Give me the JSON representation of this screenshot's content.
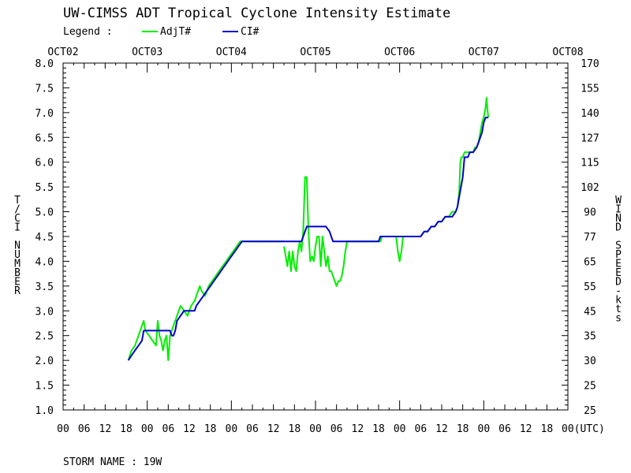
{
  "chart_data": {
    "type": "line",
    "title": "UW-CIMSS ADT Tropical Cyclone Intensity Estimate",
    "legend": {
      "label": "Legend :",
      "placement": "top-left",
      "entries": [
        {
          "name": "AdjT#",
          "color": "#00ee00"
        },
        {
          "name": "CI#",
          "color": "#0000cc"
        }
      ]
    },
    "x_units": "hours since OCT02 00 UTC",
    "xlim": [
      0,
      144
    ],
    "top_date_labels": [
      "OCT02",
      "OCT03",
      "OCT04",
      "OCT05",
      "OCT06",
      "OCT07",
      "OCT08"
    ],
    "bottom_hour_labels": [
      "00",
      "06",
      "12",
      "18",
      "00",
      "06",
      "12",
      "18",
      "00",
      "06",
      "12",
      "18",
      "00",
      "06",
      "12",
      "18",
      "00",
      "06",
      "12",
      "18",
      "00",
      "06",
      "12",
      "18",
      "00(UTC)"
    ],
    "left_axis": {
      "label": "T/CI NUMBER",
      "ylim": [
        1.0,
        8.0
      ],
      "ticks": [
        "1.0",
        "1.5",
        "2.0",
        "2.5",
        "3.0",
        "3.5",
        "4.0",
        "4.5",
        "5.0",
        "5.5",
        "6.0",
        "6.5",
        "7.0",
        "7.5",
        "8.0"
      ]
    },
    "right_axis": {
      "label": "WIND SPEED-kts",
      "ticks": [
        "25",
        "25",
        "30",
        "35",
        "45",
        "55",
        "65",
        "77",
        "90",
        "102",
        "115",
        "127",
        "140",
        "155",
        "170"
      ]
    },
    "storm_label": "STORM NAME : 19W",
    "series": [
      {
        "name": "AdjT#",
        "color": "#00ee00",
        "segments": [
          [
            [
              18.6,
              2.0
            ],
            [
              19.5,
              2.2
            ],
            [
              20.5,
              2.3
            ],
            [
              21.5,
              2.5
            ],
            [
              22.5,
              2.7
            ],
            [
              23.0,
              2.8
            ],
            [
              23.5,
              2.6
            ],
            [
              24.5,
              2.5
            ],
            [
              25.5,
              2.4
            ],
            [
              26.5,
              2.3
            ],
            [
              27.0,
              2.8
            ],
            [
              27.5,
              2.5
            ],
            [
              28.0,
              2.4
            ],
            [
              28.5,
              2.2
            ],
            [
              29.0,
              2.4
            ],
            [
              29.5,
              2.5
            ],
            [
              30.0,
              2.0
            ],
            [
              30.5,
              2.5
            ],
            [
              31.5,
              2.7
            ],
            [
              32.5,
              2.9
            ],
            [
              33.5,
              3.1
            ],
            [
              34.5,
              3.0
            ],
            [
              35.5,
              2.9
            ],
            [
              36.5,
              3.1
            ],
            [
              37.5,
              3.2
            ],
            [
              38.5,
              3.4
            ],
            [
              39.0,
              3.5
            ],
            [
              39.5,
              3.4
            ],
            [
              40.5,
              3.3
            ],
            [
              41.5,
              3.5
            ],
            [
              42.5,
              3.6
            ],
            [
              43.5,
              3.7
            ],
            [
              44.5,
              3.8
            ],
            [
              45.5,
              3.9
            ],
            [
              46.5,
              4.0
            ],
            [
              47.5,
              4.1
            ],
            [
              48.5,
              4.2
            ],
            [
              49.5,
              4.3
            ],
            [
              50.5,
              4.4
            ],
            [
              52.0,
              4.4
            ],
            [
              55.0,
              4.4
            ],
            [
              58.0,
              4.4
            ],
            [
              61.0,
              4.4
            ],
            [
              63.0,
              4.4
            ]
          ],
          [
            [
              63.0,
              4.3
            ],
            [
              63.5,
              4.1
            ],
            [
              64.0,
              3.9
            ],
            [
              64.5,
              4.2
            ],
            [
              65.0,
              3.8
            ],
            [
              65.5,
              4.2
            ],
            [
              66.0,
              3.9
            ],
            [
              66.5,
              3.8
            ],
            [
              67.0,
              4.2
            ],
            [
              67.5,
              4.4
            ],
            [
              68.0,
              4.2
            ],
            [
              68.5,
              4.6
            ],
            [
              69.0,
              5.7
            ],
            [
              69.5,
              5.7
            ],
            [
              70.0,
              4.6
            ],
            [
              70.5,
              4.0
            ],
            [
              71.0,
              4.1
            ],
            [
              71.5,
              4.0
            ],
            [
              72.0,
              4.3
            ],
            [
              72.5,
              4.5
            ],
            [
              73.0,
              4.5
            ],
            [
              73.5,
              3.9
            ],
            [
              74.0,
              4.5
            ],
            [
              74.5,
              4.2
            ],
            [
              75.0,
              3.9
            ],
            [
              75.5,
              4.1
            ],
            [
              76.0,
              3.8
            ],
            [
              76.5,
              3.8
            ],
            [
              77.0,
              3.7
            ],
            [
              77.5,
              3.6
            ],
            [
              78.0,
              3.5
            ],
            [
              78.5,
              3.6
            ],
            [
              79.0,
              3.6
            ],
            [
              79.5,
              3.7
            ],
            [
              80.0,
              3.9
            ],
            [
              80.5,
              4.2
            ],
            [
              81.0,
              4.4
            ]
          ],
          [
            [
              81.0,
              4.4
            ],
            [
              84.0,
              4.4
            ],
            [
              88.0,
              4.4
            ],
            [
              90.5,
              4.4
            ],
            [
              91.0,
              4.5
            ],
            [
              94.0,
              4.5
            ],
            [
              95.0,
              4.5
            ],
            [
              95.5,
              4.2
            ],
            [
              96.0,
              4.0
            ],
            [
              96.5,
              4.2
            ],
            [
              97.0,
              4.5
            ],
            [
              98.0,
              4.5
            ],
            [
              101.0,
              4.5
            ],
            [
              102.0,
              4.5
            ],
            [
              103.0,
              4.6
            ],
            [
              104.0,
              4.6
            ],
            [
              105.0,
              4.7
            ],
            [
              106.0,
              4.7
            ],
            [
              107.0,
              4.8
            ],
            [
              108.0,
              4.8
            ],
            [
              109.0,
              4.9
            ],
            [
              110.0,
              4.9
            ],
            [
              111.0,
              5.0
            ],
            [
              112.0,
              5.0
            ],
            [
              112.5,
              5.1
            ],
            [
              113.0,
              5.4
            ],
            [
              113.3,
              6.0
            ],
            [
              113.6,
              6.1
            ],
            [
              114.0,
              6.1
            ],
            [
              114.5,
              6.2
            ],
            [
              116.0,
              6.2
            ],
            [
              117.0,
              6.2
            ],
            [
              117.5,
              6.3
            ],
            [
              118.0,
              6.3
            ],
            [
              118.5,
              6.4
            ],
            [
              119.0,
              6.6
            ],
            [
              119.5,
              6.8
            ],
            [
              120.0,
              6.9
            ],
            [
              120.5,
              7.1
            ],
            [
              120.8,
              7.3
            ],
            [
              121.0,
              7.1
            ],
            [
              121.3,
              6.9
            ]
          ]
        ]
      },
      {
        "name": "CI#",
        "color": "#0000cc",
        "segments": [
          [
            [
              18.6,
              2.0
            ],
            [
              19.5,
              2.1
            ],
            [
              20.5,
              2.2
            ],
            [
              21.5,
              2.3
            ],
            [
              22.5,
              2.4
            ],
            [
              23.0,
              2.6
            ],
            [
              25.0,
              2.6
            ],
            [
              27.0,
              2.6
            ],
            [
              29.0,
              2.6
            ],
            [
              30.5,
              2.6
            ],
            [
              31.0,
              2.5
            ],
            [
              31.5,
              2.5
            ],
            [
              32.0,
              2.6
            ],
            [
              32.5,
              2.8
            ],
            [
              33.5,
              2.9
            ],
            [
              34.5,
              3.0
            ],
            [
              36.0,
              3.0
            ],
            [
              37.5,
              3.0
            ],
            [
              38.0,
              3.1
            ],
            [
              39.0,
              3.2
            ],
            [
              40.0,
              3.3
            ],
            [
              41.0,
              3.4
            ],
            [
              42.0,
              3.5
            ],
            [
              43.0,
              3.6
            ],
            [
              44.0,
              3.7
            ],
            [
              45.0,
              3.8
            ],
            [
              46.0,
              3.9
            ],
            [
              47.0,
              4.0
            ],
            [
              48.0,
              4.1
            ],
            [
              49.0,
              4.2
            ],
            [
              50.0,
              4.3
            ],
            [
              51.0,
              4.4
            ],
            [
              55.0,
              4.4
            ],
            [
              60.0,
              4.4
            ],
            [
              65.0,
              4.4
            ],
            [
              68.0,
              4.4
            ],
            [
              69.0,
              4.6
            ],
            [
              69.5,
              4.7
            ],
            [
              72.0,
              4.7
            ],
            [
              75.0,
              4.7
            ],
            [
              76.0,
              4.6
            ],
            [
              77.0,
              4.4
            ],
            [
              80.0,
              4.4
            ],
            [
              85.0,
              4.4
            ],
            [
              90.0,
              4.4
            ],
            [
              90.5,
              4.5
            ],
            [
              95.0,
              4.5
            ],
            [
              100.0,
              4.5
            ],
            [
              102.0,
              4.5
            ],
            [
              103.0,
              4.6
            ],
            [
              104.0,
              4.6
            ],
            [
              105.0,
              4.7
            ],
            [
              106.0,
              4.7
            ],
            [
              107.0,
              4.8
            ],
            [
              108.0,
              4.8
            ],
            [
              109.0,
              4.9
            ],
            [
              111.0,
              4.9
            ],
            [
              112.0,
              5.0
            ],
            [
              112.5,
              5.1
            ],
            [
              113.0,
              5.3
            ],
            [
              114.0,
              5.7
            ],
            [
              114.5,
              6.1
            ],
            [
              115.5,
              6.1
            ],
            [
              116.0,
              6.2
            ],
            [
              117.0,
              6.2
            ],
            [
              118.0,
              6.3
            ],
            [
              118.5,
              6.4
            ],
            [
              119.0,
              6.5
            ],
            [
              119.5,
              6.6
            ],
            [
              120.0,
              6.8
            ],
            [
              120.5,
              6.9
            ],
            [
              121.3,
              6.9
            ]
          ]
        ]
      }
    ]
  }
}
